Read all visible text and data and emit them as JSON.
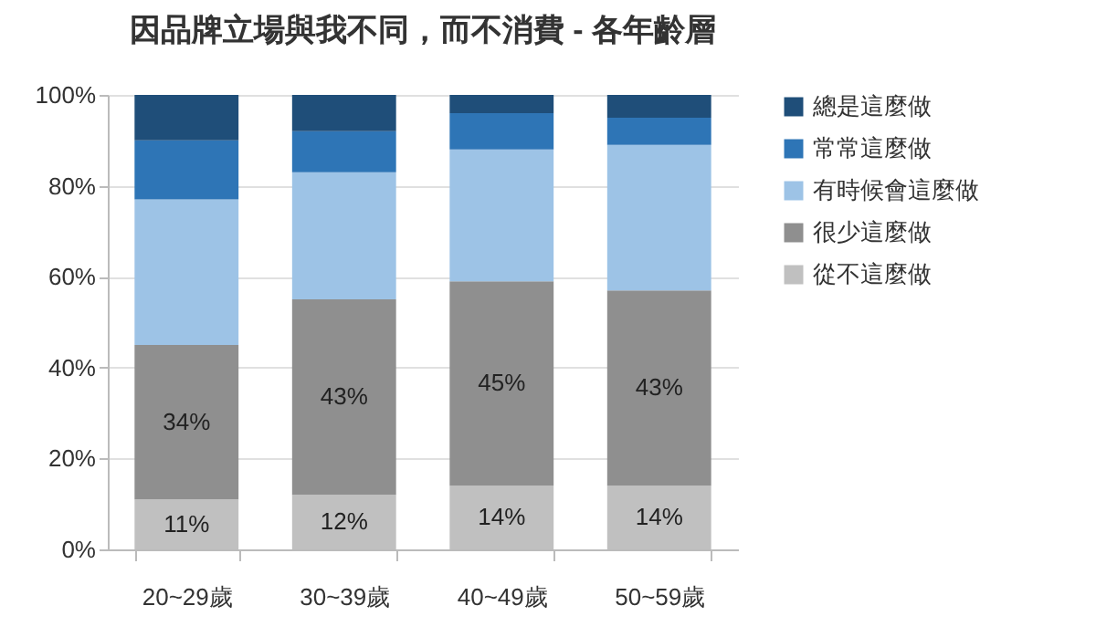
{
  "chart_data": {
    "type": "bar",
    "stacked": true,
    "title": "因品牌立場與我不同，而不消費 - 各年齡層",
    "categories": [
      "20~29歲",
      "30~39歲",
      "40~49歲",
      "50~59歲"
    ],
    "series": [
      {
        "name": "從不這麼做",
        "color": "#c0c0c0",
        "values": [
          11,
          12,
          14,
          14
        ],
        "value_labels": [
          "11%",
          "12%",
          "14%",
          "14%"
        ]
      },
      {
        "name": "很少這麼做",
        "color": "#8f8f8f",
        "values": [
          34,
          43,
          45,
          43
        ],
        "value_labels": [
          "34%",
          "43%",
          "45%",
          "43%"
        ]
      },
      {
        "name": "有時候會這麼做",
        "color": "#9dc3e6",
        "values": [
          32,
          28,
          29,
          32
        ]
      },
      {
        "name": "常常這麼做",
        "color": "#2e75b6",
        "values": [
          13,
          9,
          8,
          6
        ]
      },
      {
        "name": "總是這麼做",
        "color": "#1f4e79",
        "values": [
          10,
          8,
          4,
          5
        ]
      }
    ],
    "ylim": [
      0,
      100
    ],
    "yticks": [
      {
        "value": 0,
        "label": "0%"
      },
      {
        "value": 20,
        "label": "20%"
      },
      {
        "value": 40,
        "label": "40%"
      },
      {
        "value": 60,
        "label": "60%"
      },
      {
        "value": 80,
        "label": "80%"
      },
      {
        "value": 100,
        "label": "100%"
      }
    ],
    "grid": "y",
    "legend": "right"
  }
}
